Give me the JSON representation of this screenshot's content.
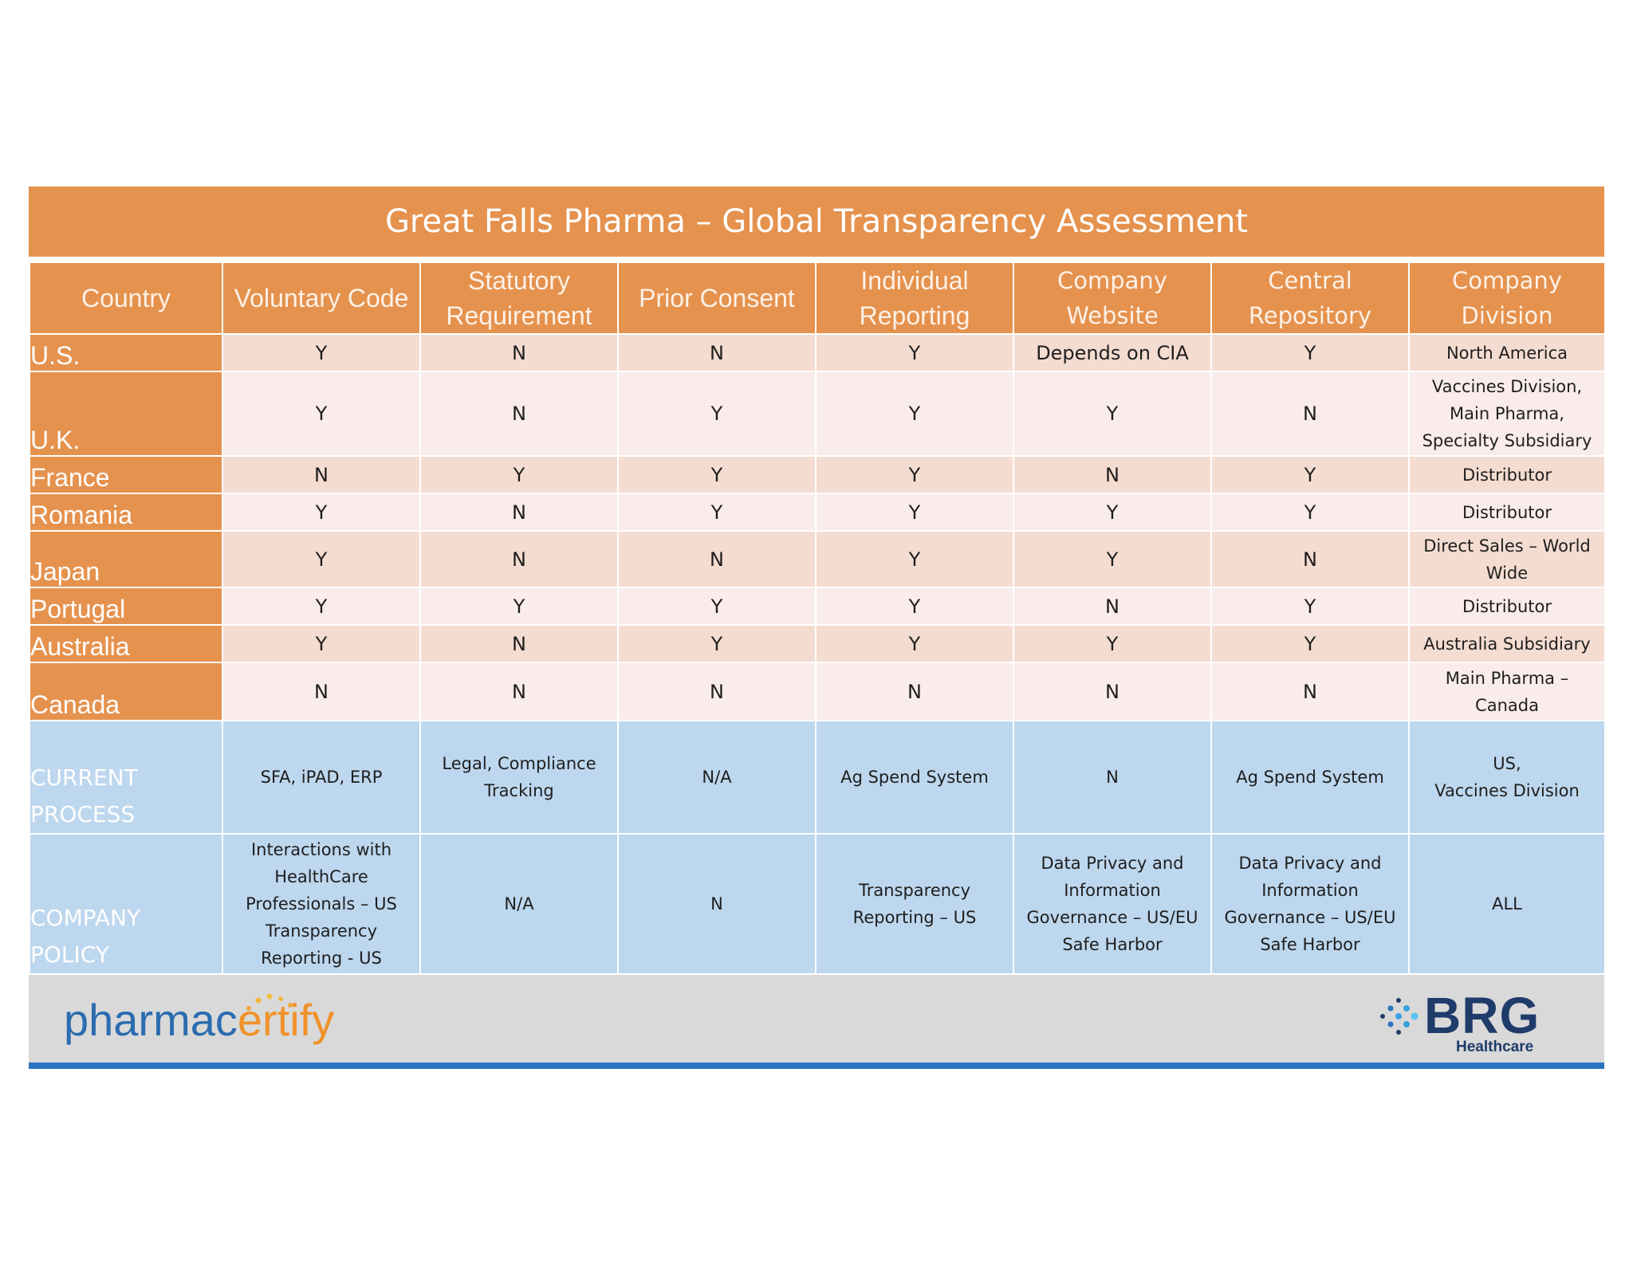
{
  "title": "Great Falls Pharma – Global Transparency Assessment",
  "columns": [
    "Country",
    "Voluntary Code",
    "Statutory\nRequirement",
    "Prior Consent",
    "Individual\nReporting",
    "Company\nWebsite",
    "Central\nRepository",
    "Company\nDivision"
  ],
  "rows": [
    {
      "country": "U.S.",
      "values": [
        "Y",
        "N",
        "N",
        "Y",
        "Depends on CIA",
        "Y",
        "North America"
      ]
    },
    {
      "country": "U.K.",
      "values": [
        "Y",
        "N",
        "Y",
        "Y",
        "Y",
        "N",
        "Vaccines Division,\nMain Pharma,\nSpecialty Subsidiary"
      ]
    },
    {
      "country": "France",
      "values": [
        "N",
        "Y",
        "Y",
        "Y",
        "N",
        "Y",
        "Distributor"
      ]
    },
    {
      "country": "Romania",
      "values": [
        "Y",
        "N",
        "Y",
        "Y",
        "Y",
        "Y",
        "Distributor"
      ]
    },
    {
      "country": "Japan",
      "values": [
        "Y",
        "N",
        "N",
        "Y",
        "Y",
        "N",
        "Direct Sales – World\nWide"
      ]
    },
    {
      "country": "Portugal",
      "values": [
        "Y",
        "Y",
        "Y",
        "Y",
        "N",
        "Y",
        "Distributor"
      ]
    },
    {
      "country": "Australia",
      "values": [
        "Y",
        "N",
        "Y",
        "Y",
        "Y",
        "Y",
        "Australia Subsidiary"
      ]
    },
    {
      "country": "Canada",
      "values": [
        "N",
        "N",
        "N",
        "N",
        "N",
        "N",
        "Main Pharma –\nCanada"
      ]
    }
  ],
  "blue_rows": [
    {
      "label": "CURRENT\nPROCESS",
      "values": [
        "SFA, iPAD, ERP",
        "Legal, Compliance\nTracking",
        "N/A",
        "Ag Spend System",
        "N",
        "Ag Spend System",
        "US,\nVaccines Division"
      ]
    },
    {
      "label": "COMPANY\nPOLICY",
      "values": [
        "Interactions with\nHealthCare\nProfessionals – US\nTransparency\nReporting - US",
        "N/A",
        "N",
        "Transparency\nReporting – US",
        "Data Privacy and\nInformation\nGovernance – US/EU\nSafe Harbor",
        "Data Privacy and\nInformation\nGovernance – US/EU\nSafe Harbor",
        "ALL"
      ]
    }
  ],
  "logos": {
    "left": {
      "part1": "pharmac",
      "part2": "ertify",
      "icon": "dots-arc-icon"
    },
    "right": {
      "name": "BRG",
      "sub": "Healthcare",
      "icon": "dot-cluster-icon"
    }
  },
  "colors": {
    "orange": "#e5924e",
    "rowA": "#f4dcd1",
    "rowB": "#f9ecea",
    "blue": "#bdd7ee",
    "footer": "#d9d9d9",
    "footerLine": "#2a74c0"
  }
}
